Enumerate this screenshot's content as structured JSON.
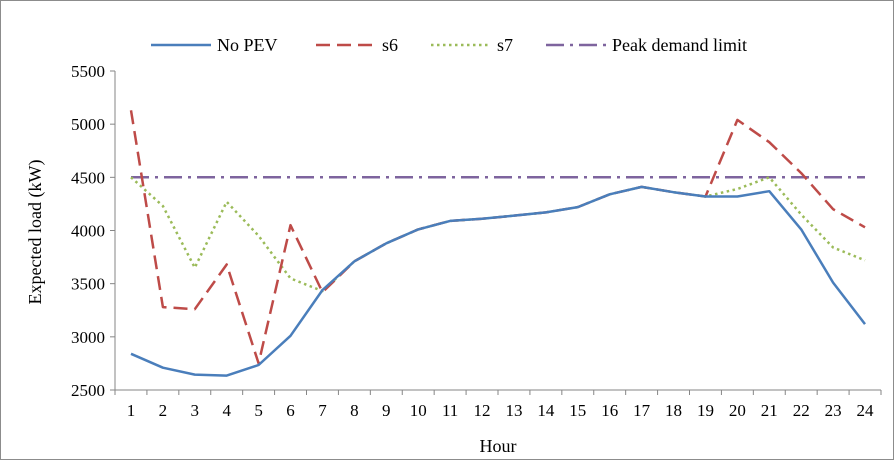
{
  "chart_data": {
    "type": "line",
    "title": "",
    "xlabel": "Hour",
    "ylabel": "Expected load (kW)",
    "x": [
      1,
      2,
      3,
      4,
      5,
      6,
      7,
      8,
      9,
      10,
      11,
      12,
      13,
      14,
      15,
      16,
      17,
      18,
      19,
      20,
      21,
      22,
      23,
      24
    ],
    "ylim": [
      2500,
      5500
    ],
    "yticks": [
      2500,
      3000,
      3500,
      4000,
      4500,
      5000,
      5500
    ],
    "grid": false,
    "legend_position": "top",
    "series": [
      {
        "name": "No PEV",
        "color": "#4a7ebb",
        "style": "solid",
        "values": [
          2840,
          2710,
          2645,
          2635,
          2735,
          3010,
          3440,
          3710,
          3880,
          4010,
          4090,
          4110,
          4140,
          4170,
          4220,
          4340,
          4410,
          4360,
          4320,
          4320,
          4370,
          4010,
          3510,
          3120
        ]
      },
      {
        "name": "s6",
        "color": "#be4b48",
        "style": "dashed",
        "values": [
          5130,
          3280,
          3260,
          3680,
          2750,
          4050,
          3420,
          3710,
          3880,
          4010,
          4090,
          4110,
          4140,
          4170,
          4220,
          4340,
          4410,
          4360,
          4320,
          5040,
          4830,
          4540,
          4200,
          4030
        ]
      },
      {
        "name": "s7",
        "color": "#9bbb59",
        "style": "dotted",
        "values": [
          4500,
          4230,
          3650,
          4270,
          3950,
          3550,
          3430,
          3710,
          3880,
          4010,
          4090,
          4110,
          4140,
          4170,
          4220,
          4340,
          4410,
          4360,
          4320,
          4390,
          4500,
          4150,
          3840,
          3720
        ]
      },
      {
        "name": "Peak demand limit",
        "color": "#7e649e",
        "style": "dashdot",
        "values": [
          4500,
          4500,
          4500,
          4500,
          4500,
          4500,
          4500,
          4500,
          4500,
          4500,
          4500,
          4500,
          4500,
          4500,
          4500,
          4500,
          4500,
          4500,
          4500,
          4500,
          4500,
          4500,
          4500,
          4500
        ]
      }
    ]
  }
}
